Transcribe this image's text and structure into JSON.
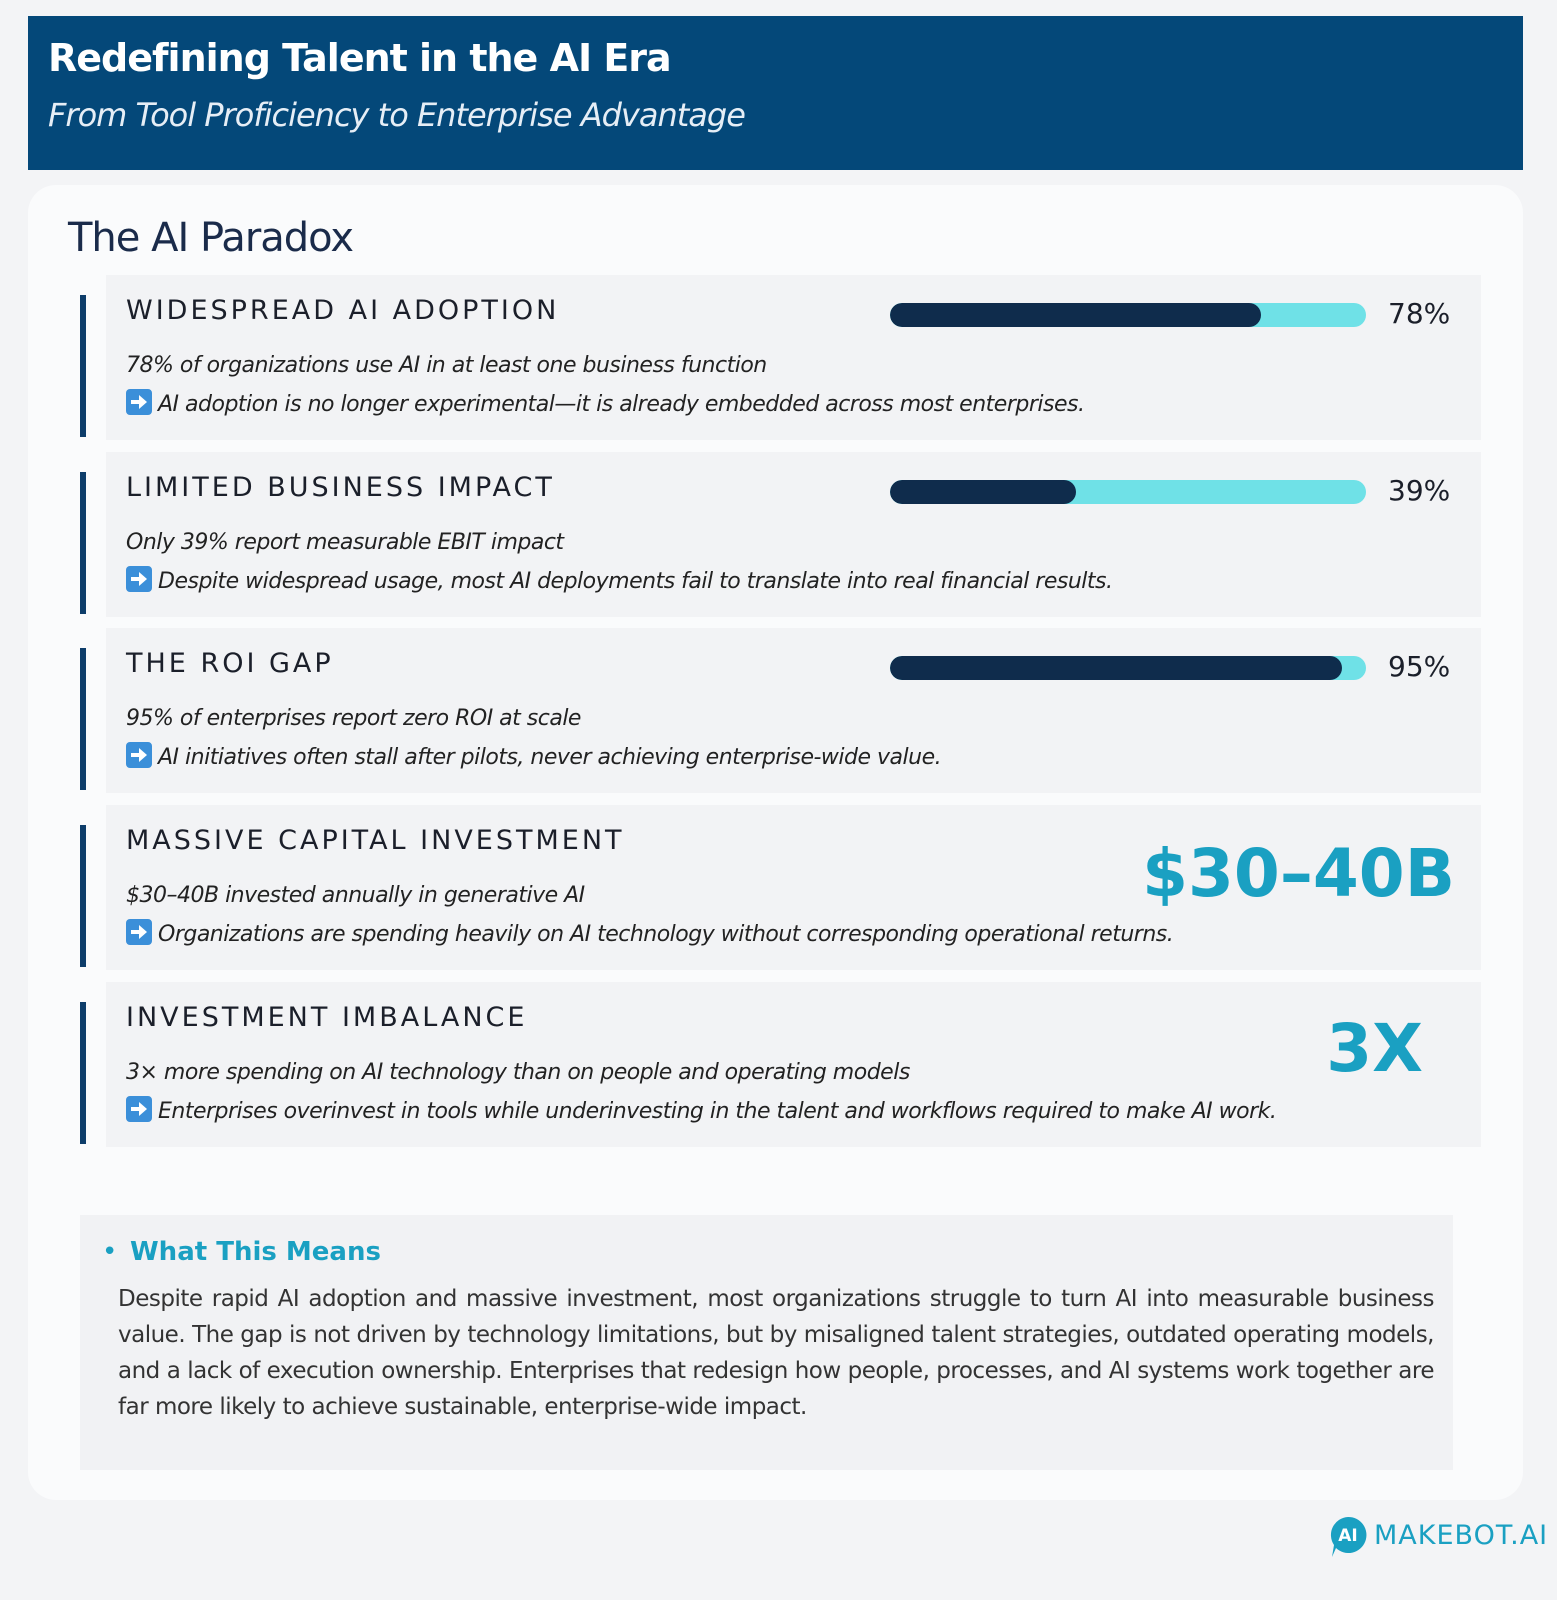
{
  "header": {
    "title": "Redefining Talent in the AI Era",
    "subtitle": "From Tool Proficiency to Enterprise Advantage"
  },
  "section": {
    "title": "The AI Paradox",
    "bar_range": [
      0,
      100
    ],
    "items": [
      {
        "title": "WIDESPREAD AI ADOPTION",
        "value": 78,
        "value_label": "78%",
        "description": "78% of organizations use AI in at least one business function",
        "note": "AI adoption is no longer experimental—it is already embedded across most enterprises."
      },
      {
        "title": "LIMITED BUSINESS IMPACT",
        "value": 39,
        "value_label": "39%",
        "description": "Only 39% report measurable EBIT impact",
        "note": "Despite widespread usage, most AI deployments fail to translate into real financial results."
      },
      {
        "title": "THE ROI GAP",
        "value": 95,
        "value_label": "95%",
        "description": "95% of enterprises report zero ROI at scale",
        "note": "AI initiatives often stall after pilots, never achieving enterprise-wide value."
      },
      {
        "title": "MASSIVE CAPITAL INVESTMENT",
        "highlight": "$30–40B",
        "description": "$30–40B invested annually in generative AI",
        "note": "Organizations are spending heavily on AI technology without corresponding operational returns."
      },
      {
        "title": "INVESTMENT IMBALANCE",
        "highlight": "3X",
        "description": "3× more spending on AI technology than on people and operating models",
        "note": "Enterprises overinvest in tools while underinvesting in the talent and workflows required to make AI work."
      }
    ]
  },
  "summary": {
    "title": "What This Means",
    "text": "Despite rapid AI adoption and massive investment, most organizations struggle to turn AI into measurable business value. The gap is not driven by technology limitations, but by misaligned talent strategies, outdated operating models, and a lack of execution ownership. Enterprises that redesign how people, processes, and AI systems work together are far more likely to achieve sustainable, enterprise-wide impact."
  },
  "footer": {
    "logo_mark": "AI",
    "brand": "MAKEBOT.AI"
  }
}
